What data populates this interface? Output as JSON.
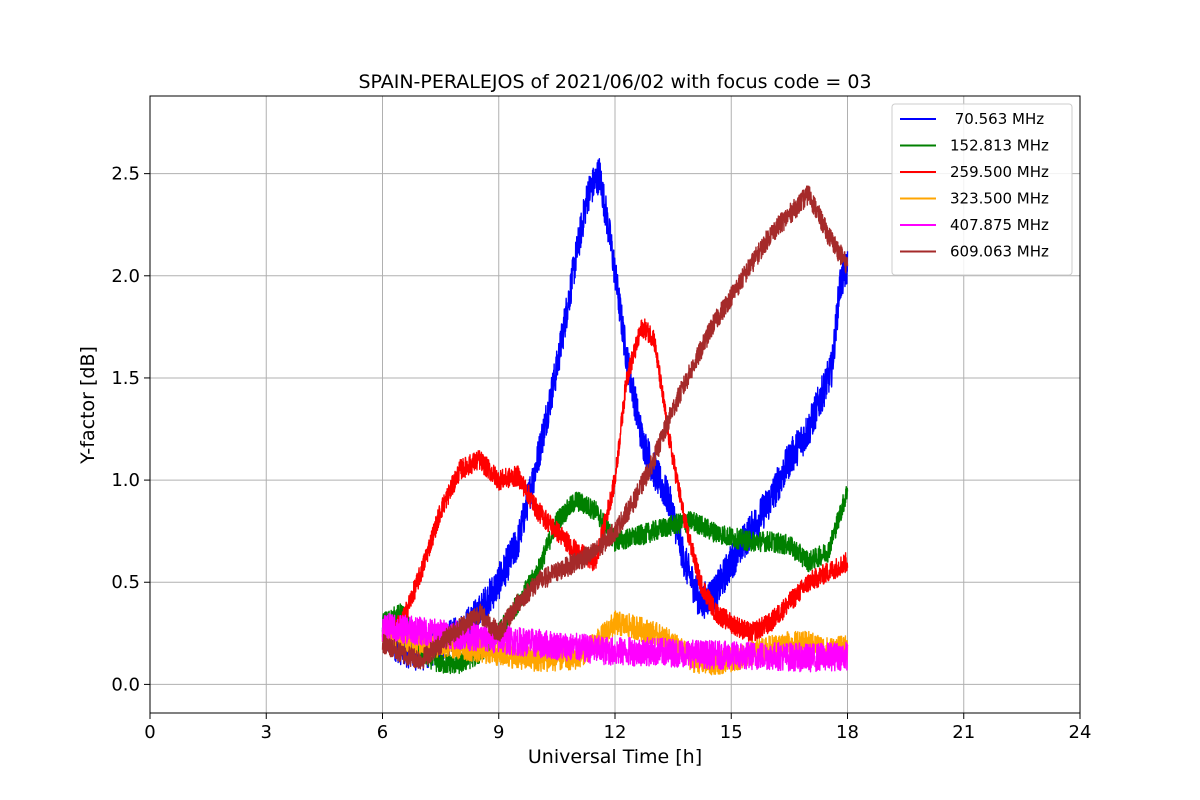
{
  "chart_data": {
    "type": "line",
    "title": "SPAIN-PERALEJOS of 2021/06/02 with focus code = 03",
    "xlabel": "Universal Time [h]",
    "ylabel": "Y-factor [dB]",
    "xlim": [
      0,
      24
    ],
    "ylim": [
      -0.14,
      2.88
    ],
    "xticks": [
      0,
      3,
      6,
      9,
      12,
      15,
      18,
      21,
      24
    ],
    "yticks": [
      0.0,
      0.5,
      1.0,
      1.5,
      2.0,
      2.5
    ],
    "xtick_labels": [
      "0",
      "3",
      "6",
      "9",
      "12",
      "15",
      "18",
      "21",
      "24"
    ],
    "ytick_labels": [
      "0.0",
      "0.5",
      "1.0",
      "1.5",
      "2.0",
      "2.5"
    ],
    "grid": true,
    "legend_position": "top-right",
    "series": [
      {
        "name": " 70.563 MHz",
        "color": "#0000ff",
        "noise": 0.09,
        "x": [
          6.0,
          6.5,
          7.0,
          7.5,
          8.0,
          8.5,
          9.0,
          9.5,
          10.0,
          10.5,
          11.0,
          11.3,
          11.6,
          11.9,
          12.3,
          12.7,
          13.0,
          13.4,
          13.8,
          14.2,
          14.6,
          15.0,
          15.5,
          16.0,
          16.5,
          17.0,
          17.3,
          17.6,
          17.8,
          18.0
        ],
        "y": [
          0.25,
          0.18,
          0.15,
          0.2,
          0.25,
          0.35,
          0.5,
          0.7,
          1.1,
          1.55,
          2.1,
          2.4,
          2.5,
          2.15,
          1.6,
          1.2,
          1.05,
          0.9,
          0.6,
          0.4,
          0.45,
          0.6,
          0.75,
          0.9,
          1.1,
          1.25,
          1.4,
          1.55,
          1.95,
          2.05
        ]
      },
      {
        "name": "152.813 MHz",
        "color": "#008000",
        "noise": 0.05,
        "x": [
          6.0,
          6.5,
          7.0,
          7.5,
          8.0,
          8.5,
          9.0,
          9.5,
          10.0,
          10.5,
          11.0,
          11.5,
          12.0,
          12.5,
          13.0,
          13.5,
          14.0,
          14.5,
          15.0,
          15.5,
          16.0,
          16.5,
          17.0,
          17.5,
          18.0
        ],
        "y": [
          0.3,
          0.35,
          0.15,
          0.1,
          0.1,
          0.15,
          0.25,
          0.4,
          0.55,
          0.8,
          0.9,
          0.85,
          0.7,
          0.72,
          0.75,
          0.78,
          0.8,
          0.75,
          0.72,
          0.7,
          0.7,
          0.68,
          0.6,
          0.65,
          0.95
        ]
      },
      {
        "name": "259.500 MHz",
        "color": "#ff0000",
        "noise": 0.05,
        "x": [
          6.0,
          6.5,
          7.0,
          7.5,
          8.0,
          8.5,
          9.0,
          9.5,
          10.0,
          10.5,
          11.0,
          11.5,
          12.0,
          12.3,
          12.7,
          13.0,
          13.4,
          13.8,
          14.2,
          14.6,
          15.0,
          15.5,
          16.0,
          16.5,
          17.0,
          17.5,
          18.0
        ],
        "y": [
          0.25,
          0.3,
          0.55,
          0.85,
          1.05,
          1.1,
          1.0,
          1.02,
          0.85,
          0.75,
          0.65,
          0.6,
          1.0,
          1.5,
          1.75,
          1.7,
          1.2,
          0.8,
          0.5,
          0.35,
          0.3,
          0.25,
          0.3,
          0.4,
          0.5,
          0.55,
          0.6
        ]
      },
      {
        "name": "323.500 MHz",
        "color": "#ffa500",
        "noise": 0.06,
        "x": [
          6.0,
          7.0,
          8.0,
          9.0,
          10.0,
          11.0,
          11.5,
          12.0,
          12.5,
          13.0,
          13.5,
          14.0,
          14.5,
          15.0,
          15.5,
          16.0,
          16.5,
          17.0,
          17.5,
          18.0
        ],
        "y": [
          0.25,
          0.2,
          0.18,
          0.15,
          0.12,
          0.13,
          0.2,
          0.3,
          0.28,
          0.25,
          0.2,
          0.12,
          0.1,
          0.12,
          0.15,
          0.18,
          0.2,
          0.2,
          0.17,
          0.18
        ]
      },
      {
        "name": "407.875 MHz",
        "color": "#ff00ff",
        "noise": 0.07,
        "x": [
          6.0,
          7.0,
          8.0,
          9.0,
          10.0,
          11.0,
          12.0,
          13.0,
          14.0,
          15.0,
          16.0,
          17.0,
          18.0
        ],
        "y": [
          0.28,
          0.26,
          0.24,
          0.22,
          0.2,
          0.18,
          0.16,
          0.16,
          0.15,
          0.14,
          0.14,
          0.13,
          0.14
        ]
      },
      {
        "name": "609.063 MHz",
        "color": "#a52a2a",
        "noise": 0.05,
        "x": [
          6.0,
          6.5,
          7.0,
          7.5,
          8.0,
          8.5,
          9.0,
          9.5,
          10.0,
          10.5,
          11.0,
          11.5,
          12.0,
          12.5,
          13.0,
          13.5,
          14.0,
          14.5,
          15.0,
          15.5,
          16.0,
          16.5,
          17.0,
          17.5,
          18.0
        ],
        "y": [
          0.2,
          0.15,
          0.12,
          0.2,
          0.28,
          0.35,
          0.25,
          0.4,
          0.5,
          0.55,
          0.6,
          0.65,
          0.75,
          0.9,
          1.1,
          1.35,
          1.55,
          1.75,
          1.9,
          2.05,
          2.2,
          2.3,
          2.4,
          2.2,
          2.05
        ]
      }
    ]
  }
}
